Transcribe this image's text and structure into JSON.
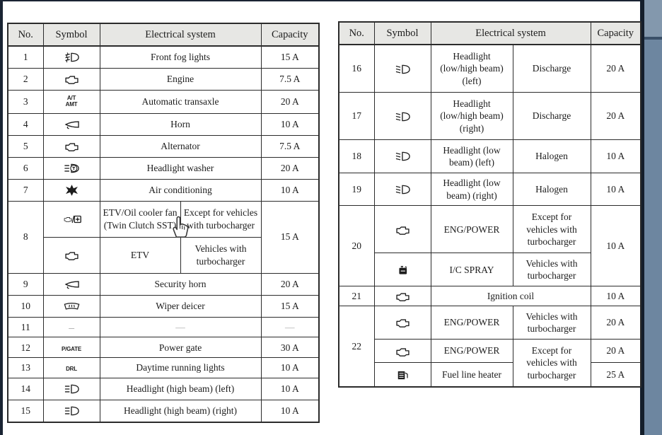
{
  "chrome": {
    "top_edge_color": "#1a2433",
    "left_edge_color": "#1a2433",
    "right_divider_color": "#141e2b",
    "right_band_color": "#6d86a0",
    "right_band_top_color": "#8398ad",
    "header_bg_color": "#e7e7e4",
    "table_border_color": "#2b2b2b"
  },
  "cursor_icon": "hand-pointer-icon",
  "symbols_text": {
    "at-amt-symbol": [
      "A/T",
      "AMT"
    ],
    "pgate-symbol": [
      "P/GATE"
    ],
    "drl-symbol": [
      "DRL"
    ],
    "dash-symbol": [
      "—"
    ]
  },
  "tables": [
    {
      "id": "left",
      "headers": [
        "No.",
        "Symbol",
        "Electrical system",
        "Capacity"
      ],
      "rows": [
        {
          "no": "1",
          "capacity": "15 A",
          "subrows": [
            {
              "icon": "front-fog-light-icon",
              "system": "Front fog lights"
            }
          ]
        },
        {
          "no": "2",
          "capacity": "7.5 A",
          "subrows": [
            {
              "icon": "engine-icon",
              "system": "Engine"
            }
          ]
        },
        {
          "no": "3",
          "capacity": "20 A",
          "subrows": [
            {
              "icon": "at-amt-symbol",
              "system": "Automatic transaxle"
            }
          ]
        },
        {
          "no": "4",
          "capacity": "10 A",
          "subrows": [
            {
              "icon": "horn-icon",
              "system": "Horn"
            }
          ]
        },
        {
          "no": "5",
          "capacity": "7.5 A",
          "subrows": [
            {
              "icon": "engine-icon",
              "system": "Alternator"
            }
          ]
        },
        {
          "no": "6",
          "capacity": "20 A",
          "subrows": [
            {
              "icon": "headlight-washer-icon",
              "system": "Headlight washer"
            }
          ]
        },
        {
          "no": "7",
          "capacity": "10 A",
          "subrows": [
            {
              "icon": "air-conditioning-icon",
              "system": "Air conditioning"
            }
          ]
        },
        {
          "no": "8",
          "capacity": "15 A",
          "subrows": [
            {
              "icon": "engine-fan-icon",
              "system": "ETV/Oil cooler fan (Twin Clutch SST)",
              "note": "Except for vehicles with turbocharger"
            },
            {
              "icon": "engine-icon",
              "system": "ETV",
              "note": "Vehicles with turbocharger"
            }
          ]
        },
        {
          "no": "9",
          "capacity": "20 A",
          "subrows": [
            {
              "icon": "horn-icon",
              "system": "Security horn"
            }
          ]
        },
        {
          "no": "10",
          "capacity": "15 A",
          "subrows": [
            {
              "icon": "wiper-deicer-icon",
              "system": "Wiper deicer"
            }
          ]
        },
        {
          "no": "11",
          "capacity": "—",
          "subrows": [
            {
              "icon": "dash-symbol",
              "system": "—"
            }
          ]
        },
        {
          "no": "12",
          "capacity": "30 A",
          "subrows": [
            {
              "icon": "pgate-symbol",
              "system": "Power gate"
            }
          ]
        },
        {
          "no": "13",
          "capacity": "10 A",
          "subrows": [
            {
              "icon": "drl-symbol",
              "system": "Daytime running lights"
            }
          ]
        },
        {
          "no": "14",
          "capacity": "10 A",
          "subrows": [
            {
              "icon": "headlight-high-beam-icon",
              "system": "Headlight (high beam) (left)"
            }
          ]
        },
        {
          "no": "15",
          "capacity": "10 A",
          "subrows": [
            {
              "icon": "headlight-high-beam-icon",
              "system": "Headlight (high beam) (right)"
            }
          ]
        }
      ]
    },
    {
      "id": "right",
      "headers": [
        "No.",
        "Symbol",
        "Electrical system",
        "Capacity"
      ],
      "rows": [
        {
          "no": "16",
          "capacity": "20 A",
          "subrows": [
            {
              "icon": "headlight-beam-icon",
              "system": "Headlight (low/high beam) (left)",
              "note": "Discharge"
            }
          ]
        },
        {
          "no": "17",
          "capacity": "20 A",
          "subrows": [
            {
              "icon": "headlight-beam-icon",
              "system": "Headlight (low/high beam) (right)",
              "note": "Discharge"
            }
          ]
        },
        {
          "no": "18",
          "capacity": "10 A",
          "subrows": [
            {
              "icon": "headlight-beam-icon",
              "system": "Headlight (low beam) (left)",
              "note": "Halogen"
            }
          ]
        },
        {
          "no": "19",
          "capacity": "10 A",
          "subrows": [
            {
              "icon": "headlight-beam-icon",
              "system": "Headlight (low beam) (right)",
              "note": "Halogen"
            }
          ]
        },
        {
          "no": "20",
          "capacity": "10 A",
          "subrows": [
            {
              "icon": "engine-icon",
              "system": "ENG/POWER",
              "note": "Except for vehicles with turbocharger"
            },
            {
              "icon": "spray-icon",
              "system": "I/C SPRAY",
              "note": "Vehicles with turbocharger"
            }
          ]
        },
        {
          "no": "21",
          "capacity": "10 A",
          "subrows": [
            {
              "icon": "engine-icon",
              "system": "Ignition coil"
            }
          ]
        },
        {
          "no": "22",
          "subrows": [
            {
              "icon": "engine-icon",
              "system": "ENG/POWER",
              "note": "Vehicles with turbocharger",
              "capacity": "20 A"
            },
            {
              "icon": "engine-icon",
              "system": "ENG/POWER",
              "note": "Except for vehicles with turbocharger",
              "note_rowspan": 2,
              "capacity": "20 A"
            },
            {
              "icon": "fuel-heater-icon",
              "system": "Fuel line heater",
              "note_covered": true,
              "capacity": "25 A"
            }
          ]
        }
      ]
    }
  ]
}
